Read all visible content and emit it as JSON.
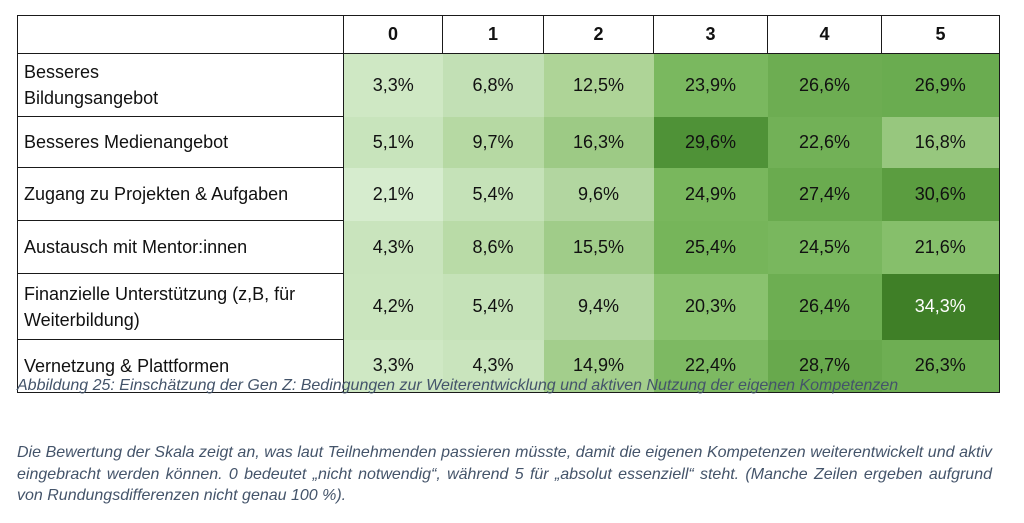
{
  "table": {
    "columns": [
      "",
      "0",
      "1",
      "2",
      "3",
      "4",
      "5"
    ],
    "rows": [
      {
        "label_lines": [
          "Besseres",
          "Bildungsangebot"
        ],
        "values": [
          "3,3%",
          "6,8%",
          "12,5%",
          "23,9%",
          "26,6%",
          "26,9%"
        ],
        "colors": [
          "#cfe8c4",
          "#c2e0b5",
          "#aed497",
          "#7ab85f",
          "#6dad52",
          "#6aac50"
        ]
      },
      {
        "label_lines": [
          "Besseres Medienangebot"
        ],
        "values": [
          "5,1%",
          "9,7%",
          "16,3%",
          "29,6%",
          "22,6%",
          "16,8%"
        ],
        "colors": [
          "#c8e4bc",
          "#b6d9a3",
          "#9dca85",
          "#4f9237",
          "#72b157",
          "#97c77e"
        ]
      },
      {
        "label_lines": [
          "Zugang zu Projekten & Aufgaben"
        ],
        "values": [
          "2,1%",
          "5,4%",
          "9,6%",
          "24,9%",
          "27,4%",
          "30,6%"
        ],
        "colors": [
          "#d6ecce",
          "#c5e2b8",
          "#b2d6a0",
          "#79b75d",
          "#6aab4f",
          "#5b9d40"
        ]
      },
      {
        "label_lines": [
          "Austausch mit Mentor:innen"
        ],
        "values": [
          "4,3%",
          "8,6%",
          "15,5%",
          "25,4%",
          "24,5%",
          "21,6%"
        ],
        "colors": [
          "#c9e4bd",
          "#b9dba7",
          "#a0cc89",
          "#76b55a",
          "#79b75e",
          "#86bf6b"
        ]
      },
      {
        "label_lines": [
          "Finanzielle Unterstützung (z,B, für",
          "Weiterbildung)"
        ],
        "values": [
          "4,2%",
          "5,4%",
          "9,4%",
          "20,3%",
          "26,4%",
          "34,3%"
        ],
        "colors": [
          "#cae5be",
          "#c5e2b8",
          "#b2d6a0",
          "#8ac26f",
          "#6dae52",
          "#3f7f27"
        ]
      },
      {
        "label_lines": [
          "Vernetzung & Plattformen"
        ],
        "values": [
          "3,3%",
          "4,3%",
          "14,9%",
          "22,4%",
          "28,7%",
          "26,3%"
        ],
        "colors": [
          "#cfe8c4",
          "#c9e4bd",
          "#a3ce8c",
          "#7db962",
          "#68a94d",
          "#6eae53"
        ]
      }
    ]
  },
  "caption": "Abbildung 25: Einschätzung der Gen Z: Bedingungen zur Weiterentwicklung und aktiven Nutzung der eigenen Kompetenzen",
  "note": "Die Bewertung der Skala zeigt an, was laut Teilnehmenden passieren müsste, damit die eigenen Kompetenzen weiterentwickelt und aktiv eingebracht werden können. 0 bedeutet „nicht notwendig“, während 5 für „absolut essenziell“ steht. (Manche Zeilen ergeben aufgrund von Rundungsdifferenzen nicht genau 100 %).",
  "highlight_text_color": "#ffffff"
}
